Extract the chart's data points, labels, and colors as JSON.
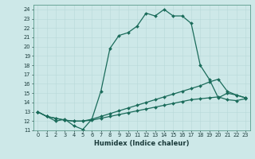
{
  "xlabel": "Humidex (Indice chaleur)",
  "bg_color": "#cde8e8",
  "line_color": "#1a6b5a",
  "xlim": [
    -0.5,
    23.5
  ],
  "ylim": [
    11,
    24.5
  ],
  "xticks": [
    0,
    1,
    2,
    3,
    4,
    5,
    6,
    7,
    8,
    9,
    10,
    11,
    12,
    13,
    14,
    15,
    16,
    17,
    18,
    19,
    20,
    21,
    22,
    23
  ],
  "yticks": [
    11,
    12,
    13,
    14,
    15,
    16,
    17,
    18,
    19,
    20,
    21,
    22,
    23,
    24
  ],
  "line1_x": [
    0,
    1,
    2,
    3,
    4,
    5,
    6,
    7,
    8,
    9,
    10,
    11,
    12,
    13,
    14,
    15,
    16,
    17,
    18,
    19,
    20,
    21,
    22,
    23
  ],
  "line1_y": [
    13.0,
    12.5,
    12.0,
    12.2,
    11.5,
    11.1,
    12.2,
    15.2,
    19.8,
    21.2,
    21.5,
    22.2,
    23.6,
    23.3,
    24.0,
    23.3,
    23.3,
    22.5,
    18.0,
    16.5,
    14.5,
    15.0,
    14.8,
    14.5
  ],
  "line2_x": [
    0,
    1,
    2,
    3,
    4,
    5,
    6,
    7,
    8,
    9,
    10,
    11,
    12,
    13,
    14,
    15,
    16,
    17,
    18,
    19,
    20,
    21,
    22,
    23
  ],
  "line2_y": [
    13.0,
    12.5,
    12.3,
    12.1,
    12.0,
    12.0,
    12.2,
    12.5,
    12.8,
    13.1,
    13.4,
    13.7,
    14.0,
    14.3,
    14.6,
    14.9,
    15.2,
    15.5,
    15.8,
    16.2,
    16.5,
    15.2,
    14.8,
    14.5
  ],
  "line3_x": [
    0,
    1,
    2,
    3,
    4,
    5,
    6,
    7,
    8,
    9,
    10,
    11,
    12,
    13,
    14,
    15,
    16,
    17,
    18,
    19,
    20,
    21,
    22,
    23
  ],
  "line3_y": [
    13.0,
    12.5,
    12.3,
    12.1,
    12.0,
    12.0,
    12.1,
    12.3,
    12.5,
    12.7,
    12.9,
    13.1,
    13.3,
    13.5,
    13.7,
    13.9,
    14.1,
    14.3,
    14.4,
    14.5,
    14.6,
    14.3,
    14.2,
    14.4
  ]
}
